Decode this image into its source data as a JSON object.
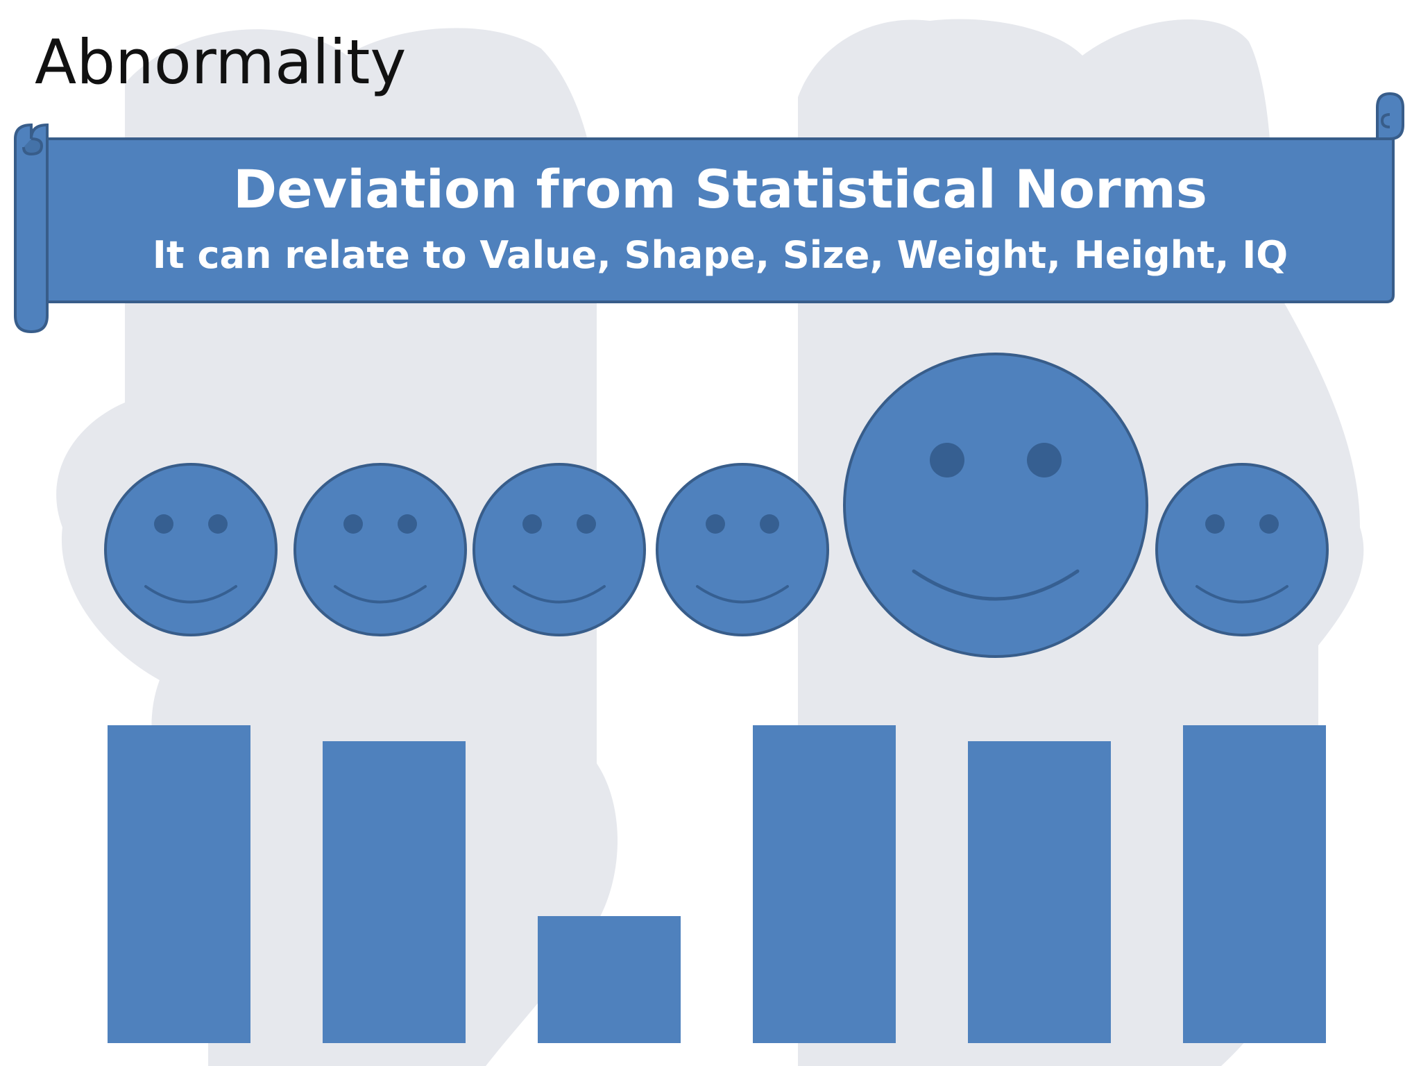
{
  "slide": {
    "title": "Abnormality",
    "banner": {
      "heading": "Deviation from Statistical Norms",
      "subheading": "It can relate to Value, Shape, Size, Weight, Height, IQ"
    }
  },
  "colors": {
    "shape_fill": "#4f81bd",
    "shape_stroke": "#385d8a",
    "feature": "#365f91",
    "watermark": "#e4e7ec"
  },
  "faces": [
    {
      "label": "normal-1",
      "size": "normal"
    },
    {
      "label": "normal-2",
      "size": "normal"
    },
    {
      "label": "normal-3",
      "size": "normal"
    },
    {
      "label": "normal-4",
      "size": "normal"
    },
    {
      "label": "large",
      "size": "large"
    },
    {
      "label": "normal-5",
      "size": "normal"
    }
  ],
  "bars": [
    {
      "label": "bar-1",
      "relative_height": 1.0
    },
    {
      "label": "bar-2",
      "relative_height": 0.95
    },
    {
      "label": "bar-3",
      "relative_height": 0.4
    },
    {
      "label": "bar-4",
      "relative_height": 1.0
    },
    {
      "label": "bar-5",
      "relative_height": 0.95
    },
    {
      "label": "bar-6",
      "relative_height": 1.0
    }
  ]
}
